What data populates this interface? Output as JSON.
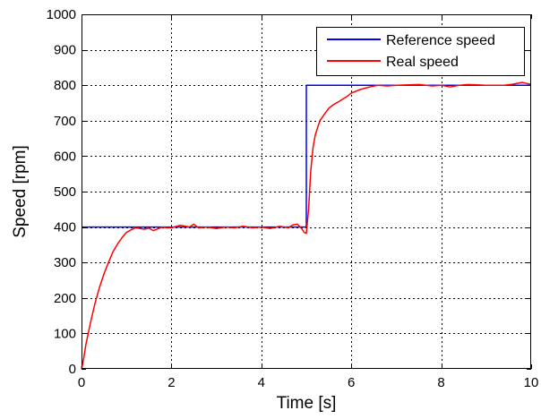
{
  "chart_data": {
    "type": "line",
    "title": "",
    "xlabel": "Time [s]",
    "ylabel": "Speed [rpm]",
    "xlim": [
      0,
      10
    ],
    "ylim": [
      0,
      1000
    ],
    "xticks": [
      0,
      2,
      4,
      6,
      8,
      10
    ],
    "yticks": [
      0,
      100,
      200,
      300,
      400,
      500,
      600,
      700,
      800,
      900,
      1000
    ],
    "grid": true,
    "legend_position": "top-right",
    "series": [
      {
        "name": "Reference speed",
        "color": "#0000ff",
        "x": [
          0,
          5,
          5,
          10
        ],
        "y": [
          400,
          400,
          800,
          800
        ]
      },
      {
        "name": "Real speed",
        "color": "#ff0000",
        "x": [
          0,
          0.05,
          0.1,
          0.2,
          0.3,
          0.4,
          0.5,
          0.6,
          0.7,
          0.8,
          0.9,
          1.0,
          1.1,
          1.2,
          1.3,
          1.4,
          1.5,
          1.6,
          1.7,
          1.8,
          1.9,
          2.0,
          2.2,
          2.4,
          2.5,
          2.6,
          2.8,
          3.0,
          3.2,
          3.4,
          3.6,
          3.8,
          4.0,
          4.2,
          4.4,
          4.6,
          4.7,
          4.8,
          4.9,
          4.95,
          5.0,
          5.05,
          5.1,
          5.15,
          5.2,
          5.3,
          5.4,
          5.5,
          5.6,
          5.7,
          5.8,
          5.9,
          6.0,
          6.2,
          6.4,
          6.6,
          6.8,
          7.0,
          7.5,
          7.8,
          8.0,
          8.2,
          8.4,
          8.6,
          9.0,
          9.4,
          9.6,
          9.8,
          9.9,
          10.0
        ],
        "y": [
          0,
          30,
          70,
          130,
          185,
          230,
          268,
          300,
          330,
          352,
          370,
          385,
          392,
          398,
          396,
          394,
          397,
          390,
          395,
          400,
          398,
          398,
          405,
          400,
          408,
          398,
          400,
          396,
          400,
          398,
          402,
          398,
          400,
          396,
          402,
          398,
          406,
          408,
          395,
          385,
          382,
          450,
          560,
          625,
          660,
          700,
          718,
          735,
          745,
          752,
          760,
          768,
          778,
          788,
          795,
          800,
          798,
          800,
          802,
          798,
          800,
          795,
          800,
          802,
          800,
          800,
          803,
          808,
          805,
          802
        ]
      }
    ]
  }
}
